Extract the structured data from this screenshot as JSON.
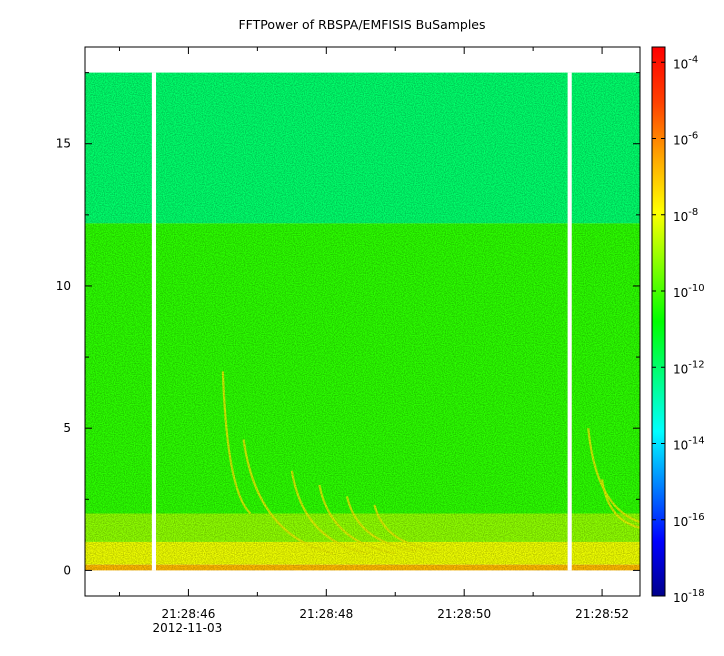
{
  "chart_data": {
    "type": "heatmap",
    "title": "FFTPower of RBSPA/EMFISIS  BuSamples",
    "x_axis": {
      "type": "time",
      "ticks": [
        "21:28:46",
        "21:28:48",
        "21:28:50",
        "21:28:52"
      ],
      "date_label": "2012-11-03",
      "tick_seconds": [
        46,
        48,
        50,
        52
      ],
      "minor_tick_seconds": [
        45,
        47,
        49,
        51
      ],
      "range_seconds": [
        44.5,
        52.55
      ]
    },
    "y_axis": {
      "ticks": [
        "0",
        "5",
        "10",
        "15"
      ],
      "tick_values": [
        0,
        5,
        10,
        15
      ],
      "minor_tick_values": [
        2.5,
        7.5,
        12.5,
        17.5
      ],
      "range": [
        -0.9,
        18.4
      ]
    },
    "colorbar": {
      "scale": "log",
      "range_exponent": [
        -18,
        -3.6
      ],
      "ticks": [
        {
          "base": "10",
          "exp": "-4",
          "value_exp": -4
        },
        {
          "base": "10",
          "exp": "-6",
          "value_exp": -6
        },
        {
          "base": "10",
          "exp": "-8",
          "value_exp": -8
        },
        {
          "base": "10",
          "exp": "-10",
          "value_exp": -10
        },
        {
          "base": "10",
          "exp": "-12",
          "value_exp": -12
        },
        {
          "base": "10",
          "exp": "-14",
          "value_exp": -14
        },
        {
          "base": "10",
          "exp": "-16",
          "value_exp": -16
        },
        {
          "base": "10",
          "exp": "-18",
          "value_exp": -18
        }
      ],
      "colors": [
        "#00008b",
        "#0000ff",
        "#0080ff",
        "#00ffff",
        "#00ff80",
        "#00ff00",
        "#80ff00",
        "#ffff00",
        "#ffa500",
        "#ff4000",
        "#ff0000"
      ]
    },
    "data_extent": {
      "y_max": 17.5,
      "x_start": 44.5,
      "x_end": 52.55
    },
    "bands": [
      {
        "y_from": 12.2,
        "y_to": 17.5,
        "power_exp": -12.0
      },
      {
        "y_from": 2.0,
        "y_to": 12.2,
        "power_exp": -10.3
      },
      {
        "y_from": 1.0,
        "y_to": 2.0,
        "power_exp": -9.2
      },
      {
        "y_from": 0.2,
        "y_to": 1.0,
        "power_exp": -8.1
      },
      {
        "y_from": 0.0,
        "y_to": 0.2,
        "power_exp": -6.8
      }
    ],
    "data_gaps_seconds": [
      [
        45.47,
        45.53
      ],
      [
        51.5,
        51.56
      ]
    ],
    "emissions": [
      {
        "x0": 46.5,
        "y0": 7.0,
        "x1": 46.9,
        "y1": 2.0
      },
      {
        "x0": 46.8,
        "y0": 4.6,
        "x1": 48.1,
        "y1": 0.6
      },
      {
        "x0": 47.5,
        "y0": 3.5,
        "x1": 48.6,
        "y1": 0.6
      },
      {
        "x0": 47.9,
        "y0": 3.0,
        "x1": 49.0,
        "y1": 0.6
      },
      {
        "x0": 48.3,
        "y0": 2.6,
        "x1": 49.3,
        "y1": 0.7
      },
      {
        "x0": 48.7,
        "y0": 2.3,
        "x1": 49.6,
        "y1": 0.7
      },
      {
        "x0": 51.8,
        "y0": 5.0,
        "x1": 52.55,
        "y1": 1.7
      },
      {
        "x0": 52.0,
        "y0": 3.2,
        "x1": 52.55,
        "y1": 1.5
      }
    ]
  }
}
